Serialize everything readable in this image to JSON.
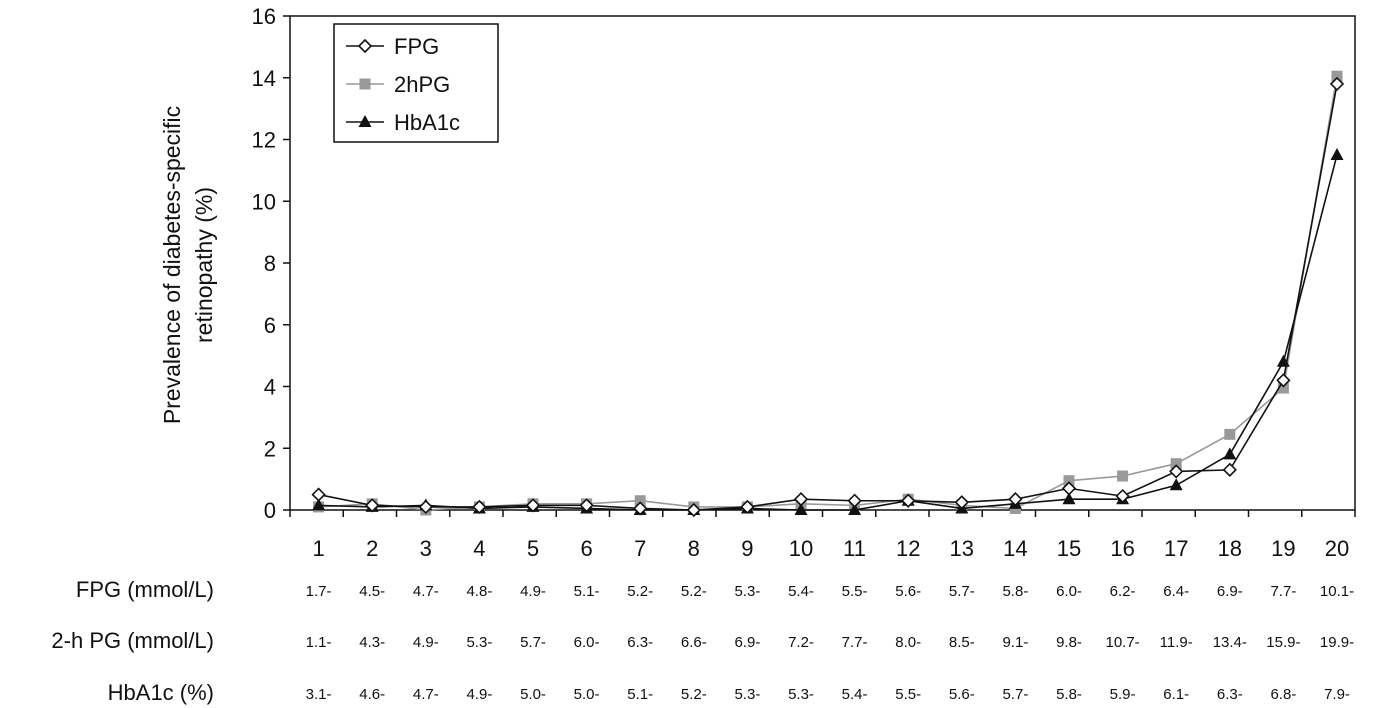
{
  "chart_data": {
    "type": "line",
    "title": "",
    "xlabel": "",
    "ylabel_lines": [
      "Prevalence of diabetes-specific",
      "retinopathy (%)"
    ],
    "ylim": [
      0,
      16
    ],
    "yticks": [
      "0",
      "2",
      "4",
      "6",
      "8",
      "10",
      "12",
      "14",
      "16"
    ],
    "grid": false,
    "legend_position": "top-left",
    "categories": [
      "1",
      "2",
      "3",
      "4",
      "5",
      "6",
      "7",
      "8",
      "9",
      "10",
      "11",
      "12",
      "13",
      "14",
      "15",
      "16",
      "17",
      "18",
      "19",
      "20"
    ],
    "series": [
      {
        "name": "FPG",
        "color": "#111111",
        "marker": "diamond-open",
        "values": [
          0.5,
          0.15,
          0.1,
          0.1,
          0.15,
          0.15,
          0.05,
          0.0,
          0.1,
          0.35,
          0.3,
          0.3,
          0.25,
          0.35,
          0.7,
          0.45,
          1.25,
          1.3,
          4.2,
          13.8
        ]
      },
      {
        "name": "2hPG",
        "color": "#999999",
        "marker": "square",
        "values": [
          0.1,
          0.2,
          0.0,
          0.1,
          0.2,
          0.2,
          0.3,
          0.1,
          0.1,
          0.2,
          0.15,
          0.35,
          0.15,
          0.05,
          0.95,
          1.1,
          1.5,
          2.45,
          3.95,
          14.05
        ]
      },
      {
        "name": "HbA1c",
        "color": "#111111",
        "marker": "triangle",
        "values": [
          0.15,
          0.1,
          0.15,
          0.05,
          0.1,
          0.05,
          0.0,
          0.0,
          0.05,
          0.0,
          0.0,
          0.3,
          0.05,
          0.2,
          0.35,
          0.35,
          0.8,
          1.8,
          4.8,
          11.5
        ]
      }
    ]
  },
  "table": {
    "rows": [
      {
        "label": "FPG (mmol/L)",
        "values": [
          "1.7-",
          "4.5-",
          "4.7-",
          "4.8-",
          "4.9-",
          "5.1-",
          "5.2-",
          "5.2-",
          "5.3-",
          "5.4-",
          "5.5-",
          "5.6-",
          "5.7-",
          "5.8-",
          "6.0-",
          "6.2-",
          "6.4-",
          "6.9-",
          "7.7-",
          "10.1-"
        ]
      },
      {
        "label": "2-h PG (mmol/L)",
        "values": [
          "1.1-",
          "4.3-",
          "4.9-",
          "5.3-",
          "5.7-",
          "6.0-",
          "6.3-",
          "6.6-",
          "6.9-",
          "7.2-",
          "7.7-",
          "8.0-",
          "8.5-",
          "9.1-",
          "9.8-",
          "10.7-",
          "11.9-",
          "13.4-",
          "15.9-",
          "19.9-"
        ]
      },
      {
        "label": "HbA1c (%)",
        "values": [
          "3.1-",
          "4.6-",
          "4.7-",
          "4.9-",
          "5.0-",
          "5.0-",
          "5.1-",
          "5.2-",
          "5.3-",
          "5.3-",
          "5.4-",
          "5.5-",
          "5.6-",
          "5.7-",
          "5.8-",
          "5.9-",
          "6.1-",
          "6.3-",
          "6.8-",
          "7.9-"
        ]
      }
    ]
  }
}
